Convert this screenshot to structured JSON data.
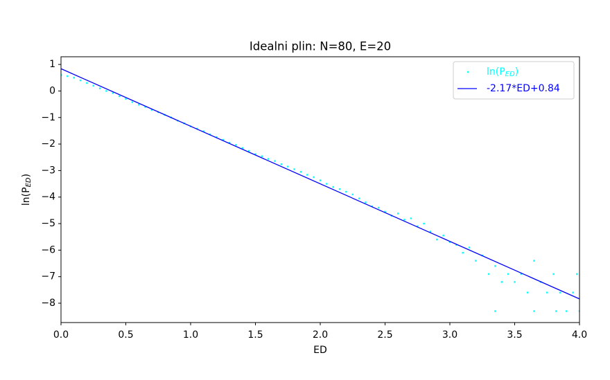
{
  "chart_data": {
    "type": "scatter-line",
    "title": "Idealni plin: N=80, E=20",
    "xlabel": "ED",
    "ylabel": "ln(P_ED)",
    "xlim": [
      0,
      4
    ],
    "ylim": [
      -8.73,
      1.29
    ],
    "xticks": [
      {
        "value": 0,
        "label": "0.0"
      },
      {
        "value": 0.5,
        "label": "0.5"
      },
      {
        "value": 1,
        "label": "1.0"
      },
      {
        "value": 1.5,
        "label": "1.5"
      },
      {
        "value": 2,
        "label": "2.0"
      },
      {
        "value": 2.5,
        "label": "2.5"
      },
      {
        "value": 3,
        "label": "3.0"
      },
      {
        "value": 3.5,
        "label": "3.5"
      },
      {
        "value": 4,
        "label": "4.0"
      }
    ],
    "yticks": [
      {
        "value": -8,
        "label": "−8"
      },
      {
        "value": -7,
        "label": "−7"
      },
      {
        "value": -6,
        "label": "−6"
      },
      {
        "value": -5,
        "label": "−5"
      },
      {
        "value": -4,
        "label": "−4"
      },
      {
        "value": -3,
        "label": "−3"
      },
      {
        "value": -2,
        "label": "−2"
      },
      {
        "value": -1,
        "label": "−1"
      },
      0,
      1
    ],
    "legend": "upper right",
    "series": [
      {
        "name": "ln(P_ED)",
        "kind": "scatter",
        "color": "#00ffff",
        "x": [
          0.0,
          0.05,
          0.1,
          0.15,
          0.2,
          0.25,
          0.3,
          0.35,
          0.4,
          0.45,
          0.5,
          0.55,
          0.6,
          0.65,
          0.7,
          0.75,
          0.8,
          0.85,
          0.9,
          0.95,
          1.0,
          1.05,
          1.1,
          1.15,
          1.2,
          1.25,
          1.3,
          1.35,
          1.4,
          1.45,
          1.5,
          1.55,
          1.6,
          1.65,
          1.7,
          1.75,
          1.8,
          1.85,
          1.9,
          1.95,
          2.0,
          2.05,
          2.1,
          2.15,
          2.2,
          2.25,
          2.3,
          2.35,
          2.4,
          2.45,
          2.5,
          2.55,
          2.6,
          2.65,
          2.7,
          2.75,
          2.8,
          2.85,
          2.9,
          2.95,
          3.0,
          3.05,
          3.1,
          3.15,
          3.2,
          3.25,
          3.3,
          3.35,
          3.4,
          3.45,
          3.5,
          3.55,
          3.6,
          3.65,
          3.7,
          3.75,
          3.8,
          3.85,
          3.9,
          3.95,
          4.0,
          3.35,
          3.65,
          3.82,
          3.98
        ],
        "values": [
          0.6,
          0.56,
          0.5,
          0.4,
          0.3,
          0.2,
          0.1,
          0.0,
          -0.08,
          -0.2,
          -0.3,
          -0.42,
          -0.52,
          -0.6,
          -0.72,
          -0.8,
          -0.9,
          -1.0,
          -1.12,
          -1.22,
          -1.33,
          -1.42,
          -1.52,
          -1.64,
          -1.74,
          -1.84,
          -1.95,
          -2.03,
          -2.15,
          -2.26,
          -2.38,
          -2.46,
          -2.56,
          -2.64,
          -2.76,
          -2.85,
          -2.95,
          -3.05,
          -3.16,
          -3.25,
          -3.37,
          -3.5,
          -3.62,
          -3.7,
          -3.8,
          -3.9,
          -4.05,
          -4.2,
          -4.35,
          -4.4,
          -4.55,
          -4.7,
          -4.62,
          -4.85,
          -4.8,
          -5.1,
          -5.0,
          -5.3,
          -5.6,
          -5.45,
          -5.7,
          -5.8,
          -6.1,
          -5.9,
          -6.4,
          -6.2,
          -6.9,
          -6.6,
          -7.2,
          -6.9,
          -7.2,
          -6.9,
          -7.6,
          -6.4,
          -7.2,
          -7.6,
          -6.9,
          -7.6,
          -8.3,
          -7.6,
          -8.3,
          -8.3,
          -8.3,
          -8.3,
          -6.9
        ]
      },
      {
        "name": "-2.17*ED+0.84",
        "kind": "line",
        "color": "#0000ff",
        "x": [
          0,
          4
        ],
        "values": [
          0.84,
          -7.84
        ]
      }
    ]
  }
}
